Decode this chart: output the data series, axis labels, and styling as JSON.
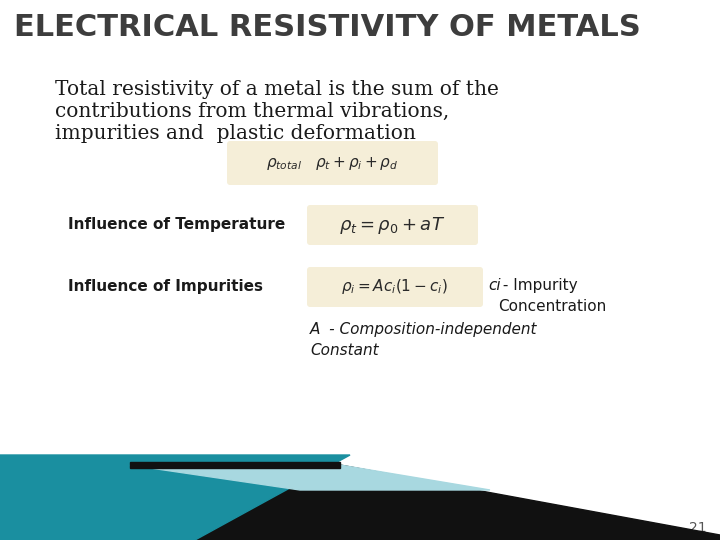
{
  "title": "ELECTRICAL RESISTIVITY OF METALS",
  "title_color": "#3d3d3d",
  "title_fontsize": 22,
  "bg_color": "#ffffff",
  "body_text_line1": "Total resistivity of a metal is the sum of the",
  "body_text_line2": "contributions from thermal vibrations,",
  "body_text_line3": "impurities and  plastic deformation",
  "body_fontsize": 14.5,
  "body_color": "#1a1a1a",
  "formula_bg": "#f5eed8",
  "label1": "Influence of Temperature",
  "label2": "Influence of Impurities",
  "label_fontsize": 11,
  "note1_part1": "ci",
  "note1_part2": " - Impurity\nConcentration",
  "note2": "A  - Composition-independent\nConstant",
  "note_fontsize": 11,
  "page_number": "21",
  "teal_color": "#1a8fa0",
  "light_teal_color": "#a8d8e0",
  "dark_color": "#111111"
}
